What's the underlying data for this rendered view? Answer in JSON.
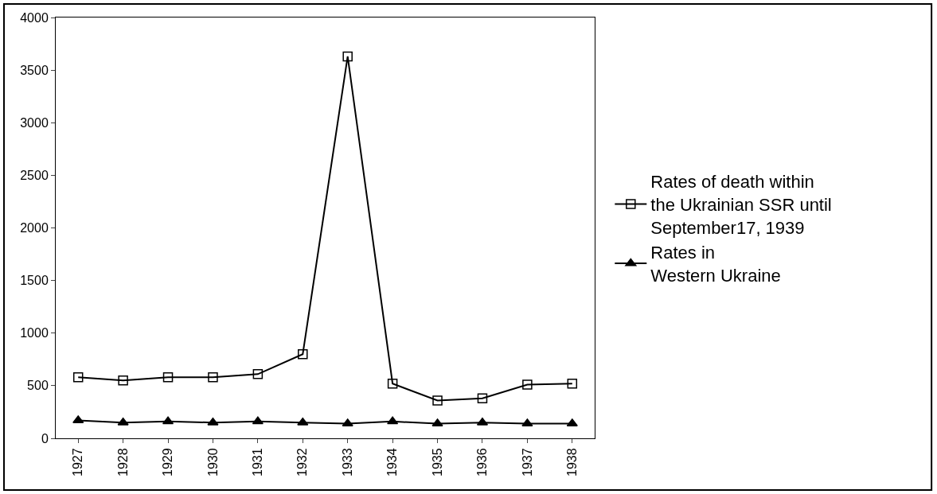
{
  "chart_data": {
    "type": "line",
    "categories": [
      "1927",
      "1928",
      "1929",
      "1930",
      "1931",
      "1932",
      "1933",
      "1934",
      "1935",
      "1936",
      "1937",
      "1938"
    ],
    "series": [
      {
        "name": "Rates of death within\nthe Ukrainian SSR until\nSeptember17, 1939",
        "color": "#000000",
        "marker": "square",
        "values": [
          580,
          550,
          580,
          580,
          610,
          800,
          3630,
          520,
          360,
          380,
          510,
          520
        ]
      },
      {
        "name": "Rates in\nWestern Ukraine",
        "color": "#000000",
        "marker": "triangle",
        "values": [
          170,
          150,
          160,
          150,
          160,
          150,
          140,
          160,
          140,
          150,
          140,
          140
        ]
      }
    ],
    "ylim": [
      0,
      4000
    ],
    "yticks": [
      0,
      500,
      1000,
      1500,
      2000,
      2500,
      3000,
      3500,
      4000
    ],
    "legend": "right",
    "line_style": "solid"
  }
}
